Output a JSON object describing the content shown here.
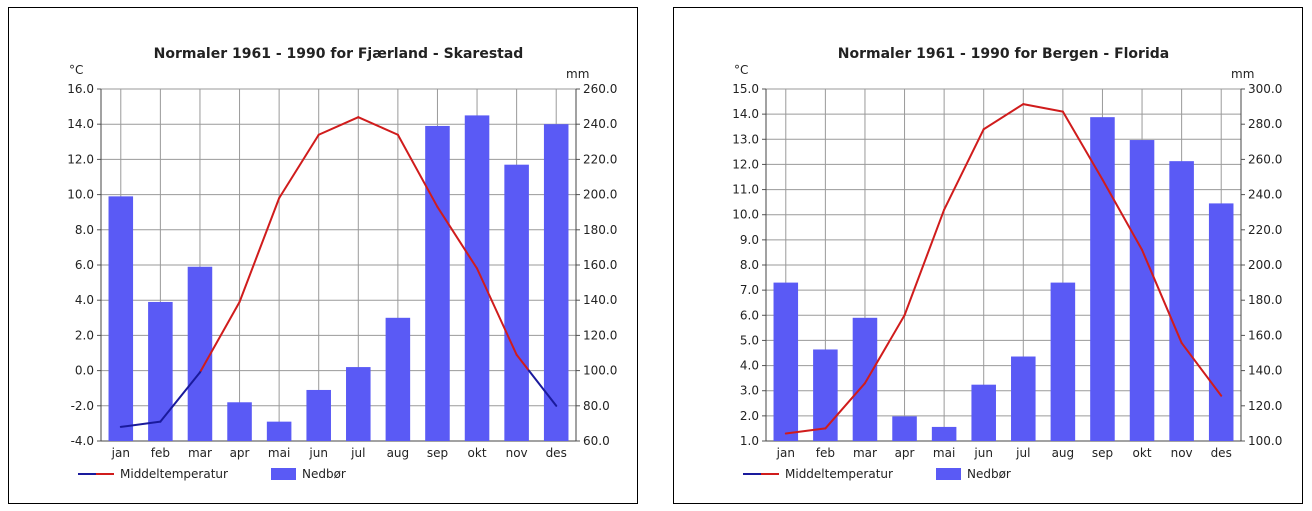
{
  "chart_data": [
    {
      "type": "bar",
      "title": "Normaler 1961 - 1990 for Fjærland - Skarestad",
      "categories": [
        "jan",
        "feb",
        "mar",
        "apr",
        "mai",
        "jun",
        "jul",
        "aug",
        "sep",
        "okt",
        "nov",
        "des"
      ],
      "y_left_unit": "°C",
      "y_right_unit": "mm",
      "y_left_range": [
        -4.0,
        16.0
      ],
      "y_right_range": [
        60.0,
        260.0
      ],
      "y_left_ticks": [
        "-4.0",
        "-2.0",
        "0.0",
        "2.0",
        "4.0",
        "6.0",
        "8.0",
        "10.0",
        "12.0",
        "14.0",
        "16.0"
      ],
      "y_right_ticks": [
        "60.0",
        "80.0",
        "100.0",
        "120.0",
        "140.0",
        "160.0",
        "180.0",
        "200.0",
        "220.0",
        "240.0",
        "260.0"
      ],
      "grid": true,
      "series": [
        {
          "name": "Nedbør",
          "type": "bar",
          "axis": "right",
          "color": "#5a5af5",
          "values": [
            199,
            139,
            159,
            82,
            71,
            89,
            102,
            130,
            239,
            245,
            217,
            240
          ]
        },
        {
          "name": "Middeltemperatur",
          "type": "line",
          "axis": "left",
          "color_positive": "#d01c1c",
          "color_negative": "#1a1a9c",
          "values": [
            -3.2,
            -2.9,
            -0.1,
            3.9,
            9.8,
            13.4,
            14.4,
            13.4,
            9.3,
            5.8,
            0.9,
            -2.0
          ]
        }
      ],
      "legend": "bottom-left"
    },
    {
      "type": "bar",
      "title": "Normaler 1961 - 1990 for Bergen - Florida",
      "categories": [
        "jan",
        "feb",
        "mar",
        "apr",
        "mai",
        "jun",
        "jul",
        "aug",
        "sep",
        "okt",
        "nov",
        "des"
      ],
      "y_left_unit": "°C",
      "y_right_unit": "mm",
      "y_left_range": [
        1.0,
        15.0
      ],
      "y_right_range": [
        100.0,
        300.0
      ],
      "y_left_ticks": [
        "1.0",
        "2.0",
        "3.0",
        "4.0",
        "5.0",
        "6.0",
        "7.0",
        "8.0",
        "9.0",
        "10.0",
        "11.0",
        "12.0",
        "13.0",
        "14.0",
        "15.0"
      ],
      "y_right_ticks": [
        "100.0",
        "120.0",
        "140.0",
        "160.0",
        "180.0",
        "200.0",
        "220.0",
        "240.0",
        "260.0",
        "280.0",
        "300.0"
      ],
      "grid": true,
      "series": [
        {
          "name": "Nedbør",
          "type": "bar",
          "axis": "right",
          "color": "#5a5af5",
          "values": [
            190,
            152,
            170,
            114,
            108,
            132,
            148,
            190,
            284,
            271,
            259,
            235
          ]
        },
        {
          "name": "Middeltemperatur",
          "type": "line",
          "axis": "left",
          "color_positive": "#d01c1c",
          "color_negative": "#1a1a9c",
          "values": [
            1.3,
            1.5,
            3.3,
            6.0,
            10.2,
            13.4,
            14.4,
            14.1,
            11.4,
            8.6,
            4.9,
            2.8
          ]
        }
      ],
      "legend": "bottom-left"
    }
  ]
}
